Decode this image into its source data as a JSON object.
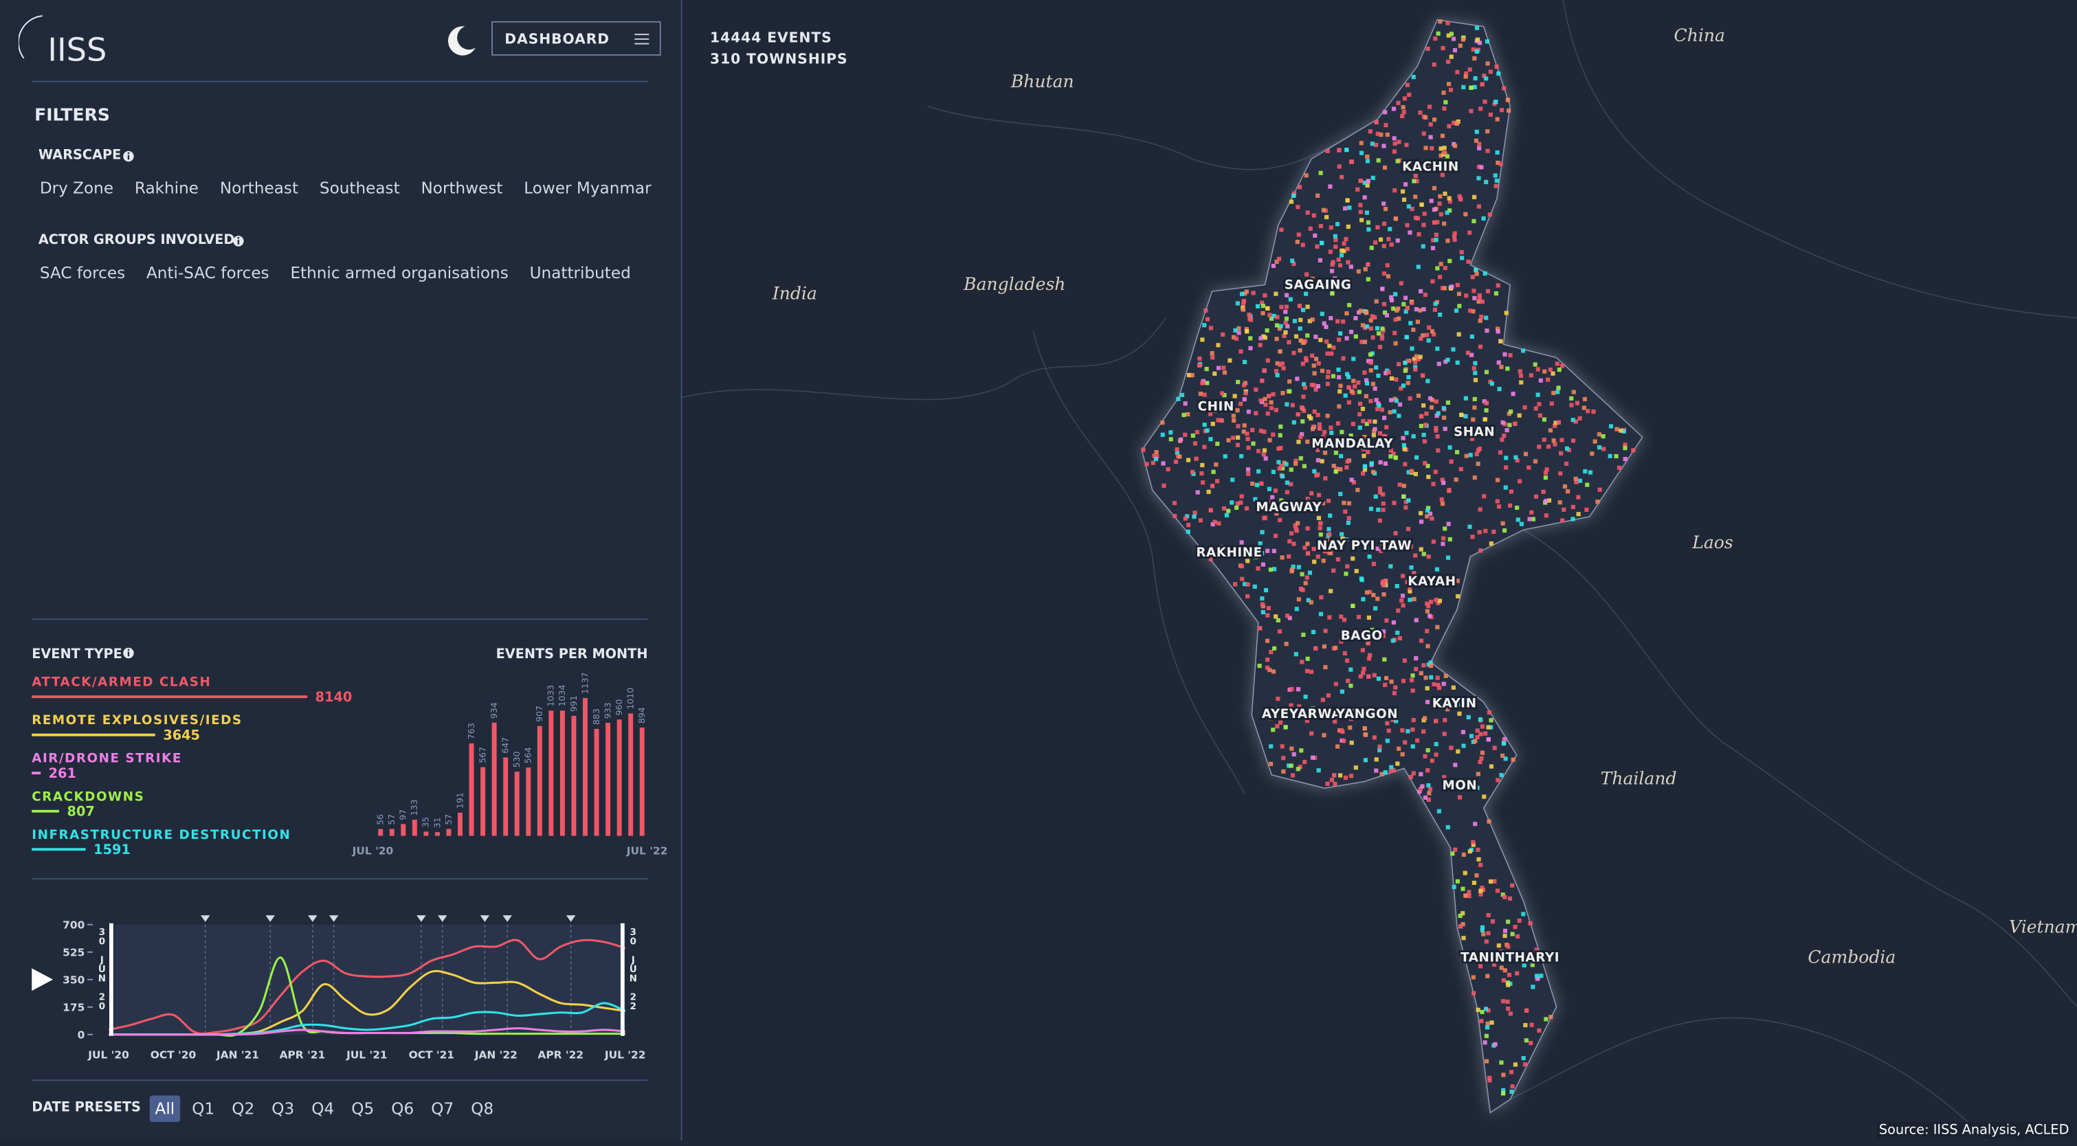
{
  "header": {
    "logo": "IISS",
    "menu": "DASHBOARD"
  },
  "stats": [
    "14444 EVENTS",
    "310 TOWNSHIPS"
  ],
  "filters": {
    "title": "FILTERS",
    "groups": [
      {
        "title": "WARSCAPE",
        "options": [
          "Dry Zone",
          "Rakhine",
          "Northeast",
          "Southeast",
          "Northwest",
          "Lower Myanmar"
        ]
      },
      {
        "title": "ACTOR GROUPS INVOLVED",
        "options": [
          "SAC forces",
          "Anti-SAC forces",
          "Ethnic armed organisations",
          "Unattributed"
        ]
      }
    ]
  },
  "event_types": {
    "title": "EVENT TYPE",
    "items": [
      {
        "name": "ATTACK/ARMED CLASH",
        "color": "#f25767",
        "value": 8140
      },
      {
        "name": "REMOTE EXPLOSIVES/IEDS",
        "color": "#f5d04a",
        "value": 3645
      },
      {
        "name": "AIR/DRONE STRIKE",
        "color": "#ee7fe6",
        "value": 261
      },
      {
        "name": "CRACKDOWNS",
        "color": "#9ef04a",
        "value": 807
      },
      {
        "name": "INFRASTRUCTURE DESTRUCTION",
        "color": "#2fe3e8",
        "value": 1591
      }
    ]
  },
  "chart_data": [
    {
      "type": "bar",
      "title": "EVENTS PER MONTH",
      "color": "#f25767",
      "axis_labels": [
        "JUL '20",
        "JUL '22"
      ],
      "values": [
        56,
        57,
        97,
        133,
        35,
        31,
        57,
        191,
        763,
        567,
        934,
        647,
        530,
        564,
        907,
        1033,
        1034,
        991,
        1137,
        883,
        933,
        960,
        1010,
        894
      ]
    },
    {
      "type": "line",
      "ylim": [
        0,
        700
      ],
      "yticks": [
        0,
        175,
        350,
        525,
        700
      ],
      "start_label": "30 JUN 20",
      "end_label": "30 JUN 22",
      "categories": [
        "JUL '20",
        null,
        null,
        "OCT '20",
        null,
        null,
        "JAN '21",
        null,
        null,
        "APR '21",
        null,
        null,
        "JUL '21",
        null,
        null,
        "OCT '21",
        null,
        null,
        "JAN '22",
        null,
        null,
        "APR '22",
        null,
        null,
        "JUL '22"
      ],
      "series": [
        {
          "color": "#f25767",
          "values": [
            30,
            60,
            100,
            125,
            15,
            15,
            40,
            90,
            250,
            400,
            470,
            390,
            370,
            370,
            390,
            470,
            510,
            560,
            560,
            600,
            480,
            560,
            600,
            590,
            550
          ]
        },
        {
          "color": "#f5d04a",
          "values": [
            0,
            0,
            0,
            0,
            0,
            0,
            5,
            20,
            80,
            150,
            320,
            220,
            130,
            160,
            300,
            400,
            380,
            330,
            330,
            330,
            260,
            200,
            190,
            170,
            150
          ]
        },
        {
          "color": "#9ef04a",
          "values": [
            0,
            0,
            0,
            0,
            0,
            0,
            5,
            150,
            490,
            60,
            20,
            10,
            10,
            10,
            10,
            10,
            10,
            5,
            5,
            5,
            5,
            5,
            5,
            5,
            5
          ]
        },
        {
          "color": "#2fe3e8",
          "values": [
            0,
            0,
            0,
            0,
            0,
            0,
            5,
            10,
            30,
            60,
            60,
            40,
            30,
            40,
            60,
            100,
            110,
            140,
            140,
            120,
            130,
            140,
            140,
            200,
            150
          ]
        },
        {
          "color": "#ee7fe6",
          "values": [
            0,
            0,
            0,
            0,
            0,
            0,
            0,
            5,
            20,
            30,
            20,
            10,
            10,
            10,
            10,
            20,
            20,
            20,
            30,
            40,
            30,
            20,
            20,
            30,
            20
          ]
        }
      ]
    }
  ],
  "date_presets": {
    "title": "DATE PRESETS",
    "options": [
      "All",
      "Q1",
      "Q2",
      "Q3",
      "Q4",
      "Q5",
      "Q6",
      "Q7",
      "Q8"
    ],
    "selected": "All"
  },
  "map": {
    "countries": [
      "China",
      "Bhutan",
      "India",
      "Bangladesh",
      "Laos",
      "Thailand",
      "Cambodia",
      "Vietnam"
    ],
    "regions": [
      "KACHIN",
      "SAGAING",
      "CHIN",
      "MANDALAY",
      "SHAN",
      "MAGWAY",
      "RAKHINE",
      "NAY PYI TAW",
      "KAYAH",
      "BAGO",
      "AYEYARWADY",
      "YANGON",
      "KAYIN",
      "MON",
      "TANINTHARYI"
    ]
  },
  "source": "Source: IISS Analysis, ACLED"
}
